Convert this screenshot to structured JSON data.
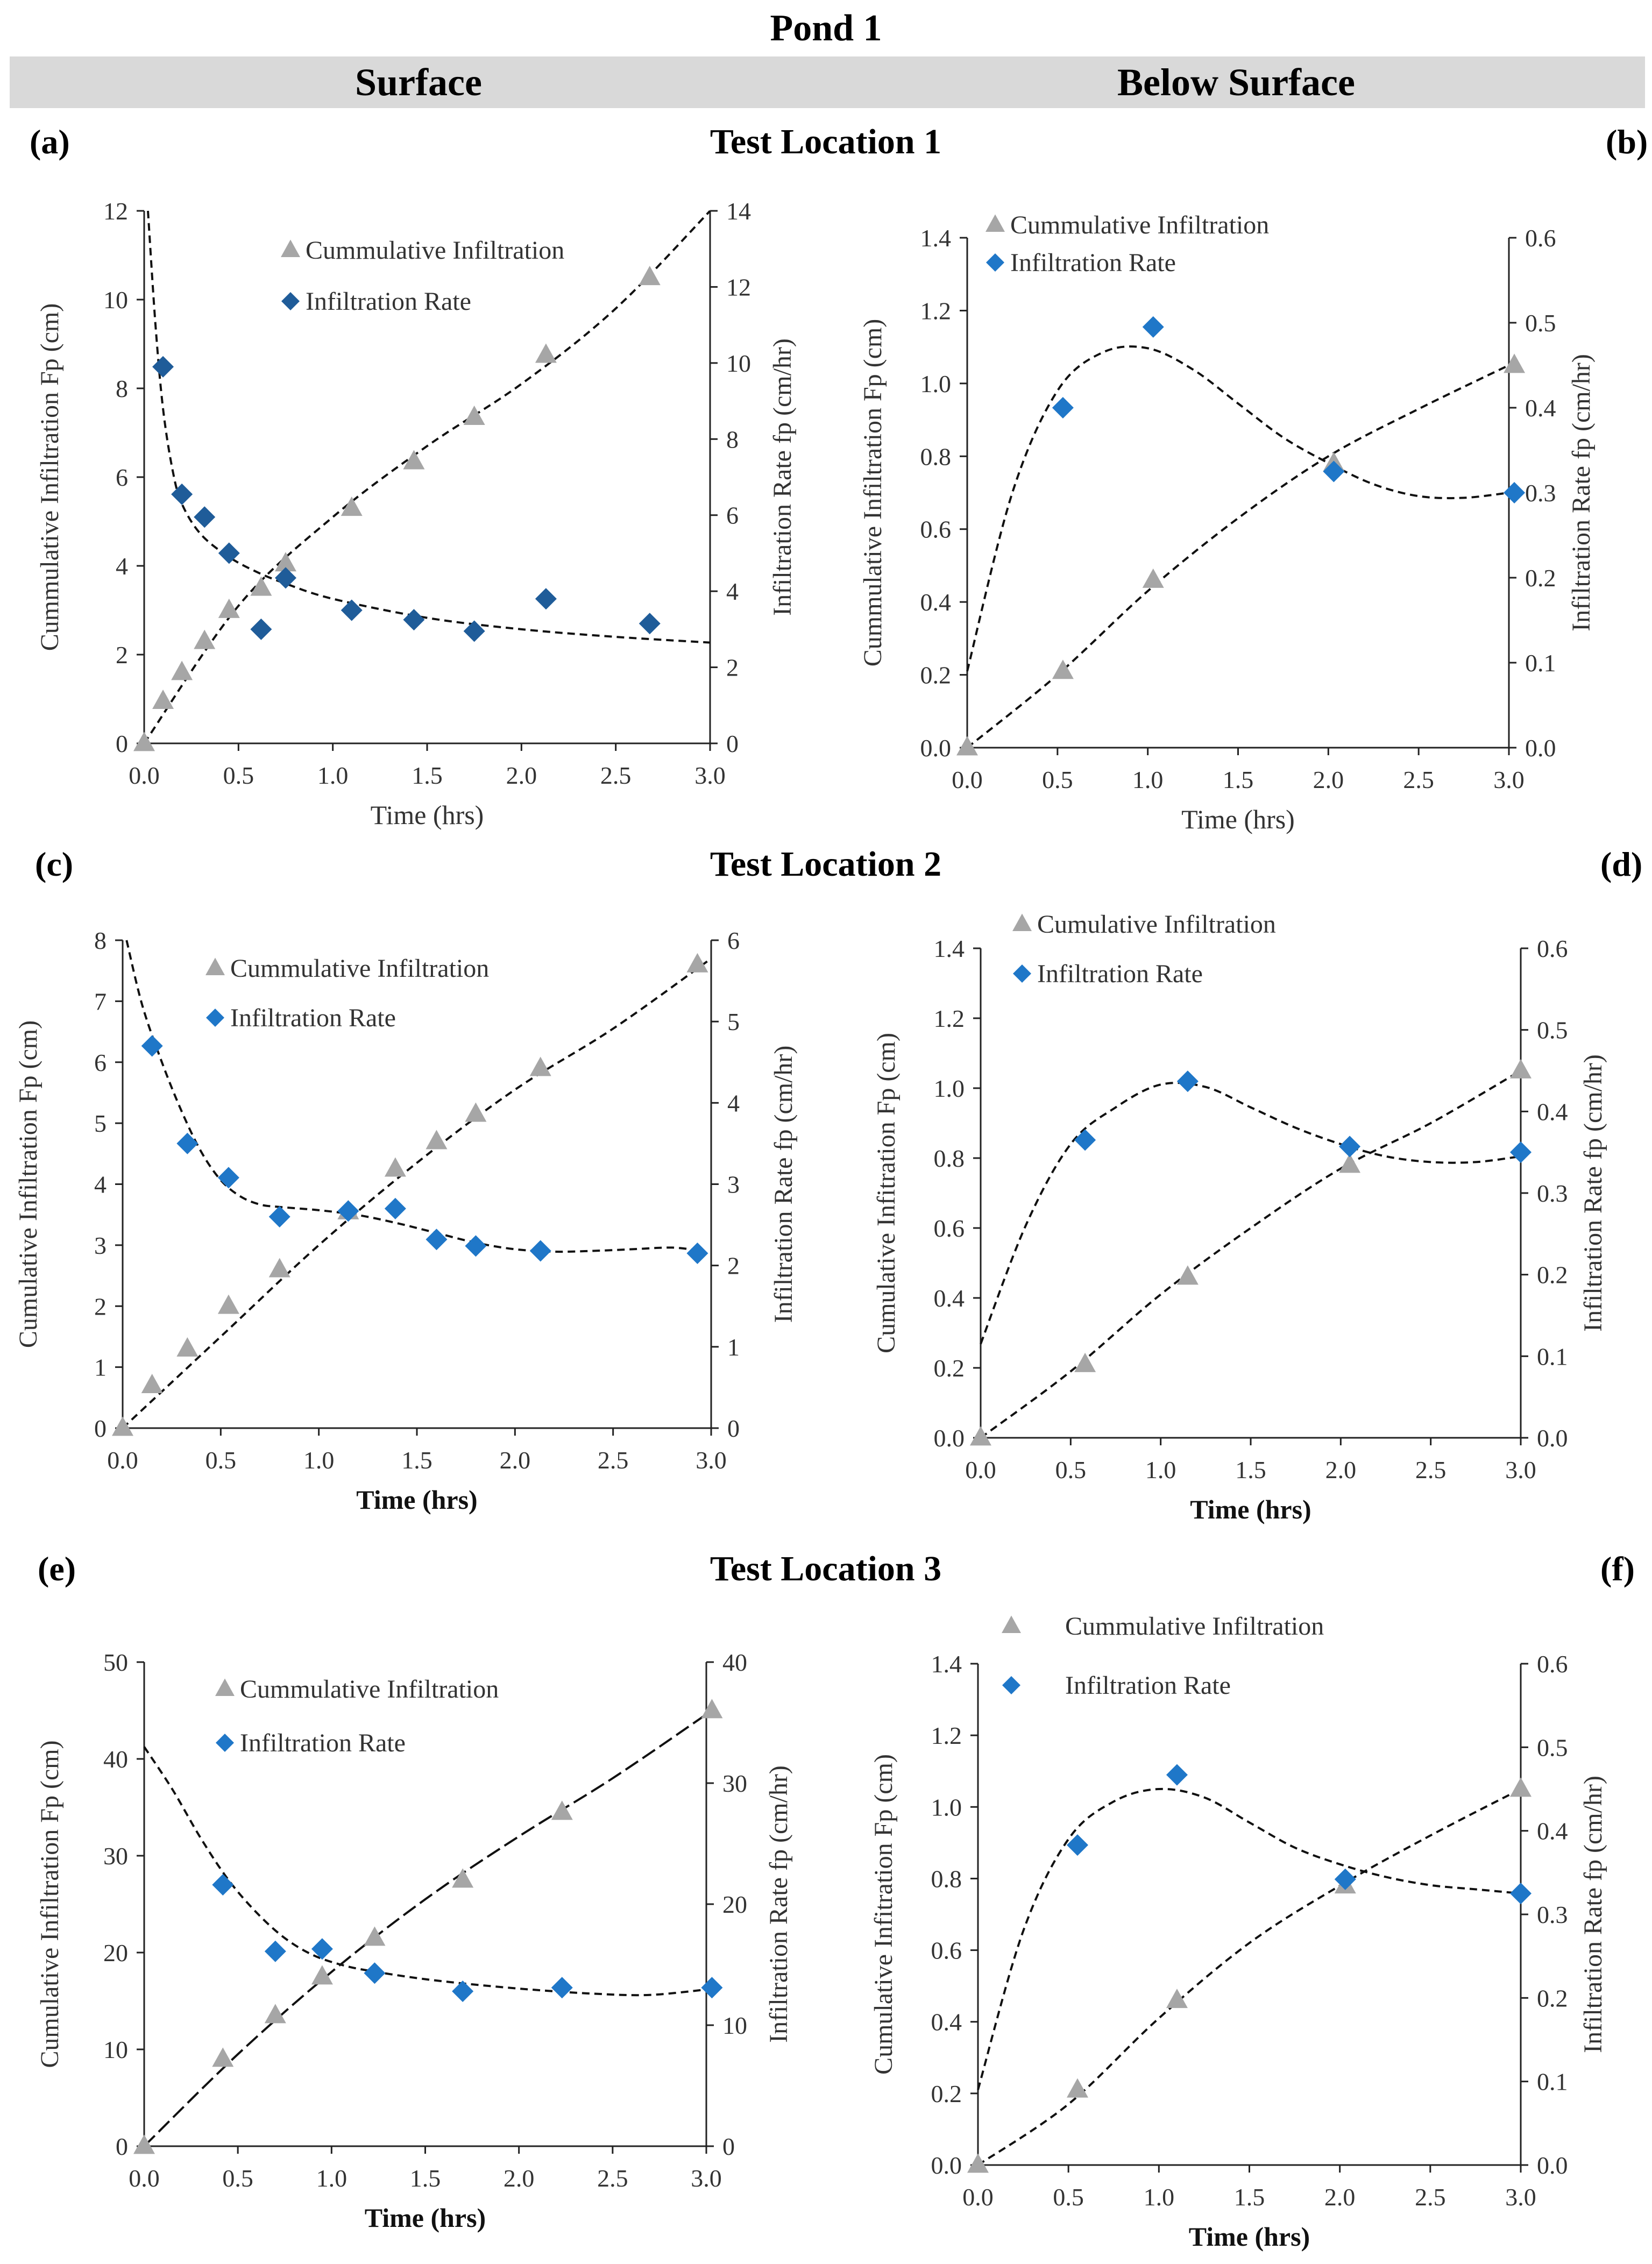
{
  "title": "Pond 1",
  "columns": [
    "Surface",
    "Below Surface"
  ],
  "rows": [
    "Test Location 1",
    "Test Location 2",
    "Test Location 3"
  ],
  "colors": {
    "triangle": "#a6a6a6",
    "diamond_dark": "#1f5c99",
    "diamond_blue": "#1f77c8",
    "band": "#d9d9d9"
  },
  "chart_data": [
    {
      "id": "a",
      "panel_label": "(a)",
      "type": "scatter",
      "xlabel": "Time (hrs)",
      "ylabel_left": "Cummulative Infiltration Fp (cm)",
      "ylabel_right": "Infiltration Rate fp (cm/hr)",
      "xlim": [
        0,
        3
      ],
      "x_ticks": [
        "0.0",
        "0.5",
        "1.0",
        "1.5",
        "2.0",
        "2.5",
        "3.0"
      ],
      "ylim_left": [
        0,
        12
      ],
      "y_ticks_left": [
        "0",
        "2",
        "4",
        "6",
        "8",
        "10",
        "12"
      ],
      "ylim_right": [
        0,
        14
      ],
      "y_ticks_right": [
        "0",
        "2",
        "4",
        "6",
        "8",
        "10",
        "12",
        "14"
      ],
      "legend": [
        "Cummulative Infiltration",
        "Infiltration Rate"
      ],
      "series": [
        {
          "name": "Cummulative Infiltration",
          "marker": "triangle",
          "x": [
            0,
            0.1,
            0.2,
            0.32,
            0.45,
            0.62,
            0.75,
            1.1,
            1.43,
            1.75,
            2.13,
            2.68
          ],
          "y": [
            0,
            0.95,
            1.6,
            2.3,
            3.0,
            3.5,
            4.05,
            5.3,
            6.35,
            7.35,
            8.75,
            10.5
          ]
        },
        {
          "name": "Infiltration Rate",
          "marker": "diamond",
          "x": [
            0.1,
            0.2,
            0.32,
            0.45,
            0.62,
            0.75,
            1.1,
            1.43,
            1.75,
            2.13,
            2.68
          ],
          "y": [
            9.9,
            6.55,
            5.95,
            5.0,
            3.0,
            4.35,
            3.5,
            3.25,
            2.95,
            3.8,
            3.15
          ]
        }
      ],
      "trend_left": {
        "x": [
          0,
          0.5,
          1,
          1.5,
          2,
          2.5,
          3
        ],
        "y": [
          0,
          3.1,
          5.1,
          6.7,
          8.1,
          9.8,
          12
        ]
      },
      "trend_right": {
        "x": [
          0.02,
          0.06,
          0.1,
          0.15,
          0.2,
          0.3,
          0.45,
          0.6,
          0.75,
          1.0,
          1.5,
          2.0,
          2.5,
          3.0
        ],
        "y": [
          14,
          11,
          8.8,
          7.2,
          6.3,
          5.5,
          4.9,
          4.5,
          4.2,
          3.8,
          3.3,
          3.0,
          2.8,
          2.65
        ]
      }
    },
    {
      "id": "b",
      "panel_label": "(b)",
      "type": "scatter",
      "xlabel": "Time (hrs)",
      "ylabel_left": "Cummulative Infiltration Fp (cm)",
      "ylabel_right": "Infiltration Rate fp (cm/hr)",
      "xlim": [
        0,
        3
      ],
      "x_ticks": [
        "0.0",
        "0.5",
        "1.0",
        "1.5",
        "2.0",
        "2.5",
        "3.0"
      ],
      "ylim_left": [
        0,
        1.4
      ],
      "y_ticks_left": [
        "0.0",
        "0.2",
        "0.4",
        "0.6",
        "0.8",
        "1.0",
        "1.2",
        "1.4"
      ],
      "ylim_right": [
        0,
        0.6
      ],
      "y_ticks_right": [
        "0.0",
        "0.1",
        "0.2",
        "0.3",
        "0.4",
        "0.5",
        "0.6"
      ],
      "legend": [
        "Cummulative Infiltration",
        "Infiltration Rate"
      ],
      "series": [
        {
          "name": "Cummulative Infiltration",
          "marker": "triangle",
          "x": [
            0,
            0.53,
            1.03,
            2.03,
            3.03
          ],
          "y": [
            0,
            0.21,
            0.46,
            0.78,
            1.05
          ]
        },
        {
          "name": "Infiltration Rate",
          "marker": "diamond",
          "x": [
            0.53,
            1.03,
            2.03,
            3.03
          ],
          "y": [
            0.4,
            0.495,
            0.325,
            0.3
          ]
        }
      ],
      "trend_left": {
        "x": [
          0,
          0.5,
          1,
          1.5,
          2,
          2.5,
          3
        ],
        "y": [
          0,
          0.2,
          0.43,
          0.63,
          0.8,
          0.93,
          1.05
        ]
      },
      "trend_right": {
        "x": [
          0,
          0.25,
          0.5,
          0.75,
          1.0,
          1.25,
          1.5,
          1.75,
          2.0,
          2.25,
          2.5,
          2.75,
          3.0
        ],
        "y": [
          0.09,
          0.3,
          0.42,
          0.465,
          0.47,
          0.445,
          0.405,
          0.365,
          0.335,
          0.31,
          0.296,
          0.294,
          0.3
        ]
      }
    },
    {
      "id": "c",
      "panel_label": "(c)",
      "type": "scatter",
      "xlabel": "Time (hrs)",
      "ylabel_left": "Cumulative Infiltration Fp (cm)",
      "ylabel_right": "Infiltration Rate fp (cm/hr)",
      "xlim": [
        0,
        3
      ],
      "x_ticks": [
        "0.0",
        "0.5",
        "1.0",
        "1.5",
        "2.0",
        "2.5",
        "3.0"
      ],
      "ylim_left": [
        0,
        8
      ],
      "y_ticks_left": [
        "0",
        "1",
        "2",
        "3",
        "4",
        "5",
        "6",
        "7",
        "8"
      ],
      "ylim_right": [
        0,
        6
      ],
      "y_ticks_right": [
        "0",
        "1",
        "2",
        "3",
        "4",
        "5",
        "6"
      ],
      "legend": [
        "Cummulative Infiltration",
        "Infiltration Rate"
      ],
      "series": [
        {
          "name": "Cummulative Infiltration",
          "marker": "triangle",
          "x": [
            0,
            0.15,
            0.33,
            0.54,
            0.8,
            1.15,
            1.39,
            1.6,
            1.8,
            2.13,
            2.93
          ],
          "y": [
            0,
            0.7,
            1.3,
            2.0,
            2.6,
            3.55,
            4.25,
            4.7,
            5.15,
            5.9,
            7.6
          ]
        },
        {
          "name": "Infiltration Rate",
          "marker": "diamond",
          "x": [
            0.15,
            0.33,
            0.54,
            0.8,
            1.15,
            1.39,
            1.6,
            1.8,
            2.13,
            2.93
          ],
          "y": [
            4.7,
            3.5,
            3.08,
            2.6,
            2.67,
            2.7,
            2.32,
            2.24,
            2.18,
            2.15
          ]
        }
      ],
      "trend_left": {
        "x": [
          0,
          0.5,
          1,
          1.5,
          2,
          2.5,
          3
        ],
        "y": [
          0,
          1.5,
          3.0,
          4.35,
          5.55,
          6.55,
          7.7
        ]
      },
      "trend_right": {
        "x": [
          0.02,
          0.1,
          0.2,
          0.3,
          0.4,
          0.5,
          0.6,
          0.7,
          0.8,
          1.0,
          1.2,
          1.4,
          1.6,
          1.8,
          2.0,
          2.2,
          2.4,
          2.6,
          2.8,
          2.95
        ],
        "y": [
          6.0,
          5.2,
          4.5,
          3.9,
          3.4,
          3.05,
          2.85,
          2.75,
          2.72,
          2.68,
          2.62,
          2.52,
          2.4,
          2.28,
          2.2,
          2.17,
          2.18,
          2.2,
          2.22,
          2.18
        ]
      }
    },
    {
      "id": "d",
      "panel_label": "(d)",
      "type": "scatter",
      "xlabel": "Time (hrs)",
      "ylabel_left": "Cumulative Infitration Fp (cm)",
      "ylabel_right": "Infiltration Rate fp (cm/hr)",
      "xlim": [
        0,
        3
      ],
      "x_ticks": [
        "0.0",
        "0.5",
        "1.0",
        "1.5",
        "2.0",
        "2.5",
        "3.0"
      ],
      "ylim_left": [
        0,
        1.4
      ],
      "y_ticks_left": [
        "0.0",
        "0.2",
        "0.4",
        "0.6",
        "0.8",
        "1.0",
        "1.2",
        "1.4"
      ],
      "ylim_right": [
        0,
        0.6
      ],
      "y_ticks_right": [
        "0.0",
        "0.1",
        "0.2",
        "0.3",
        "0.4",
        "0.5",
        "0.6"
      ],
      "legend": [
        "Cumulative Infiltration",
        "Infiltration Rate"
      ],
      "series": [
        {
          "name": "Cumulative Infiltration",
          "marker": "triangle",
          "x": [
            0,
            0.58,
            1.15,
            2.05,
            3.0
          ],
          "y": [
            0,
            0.21,
            0.46,
            0.78,
            1.05
          ]
        },
        {
          "name": "Infiltration Rate",
          "marker": "diamond",
          "x": [
            0.58,
            1.15,
            2.05,
            3.0
          ],
          "y": [
            0.365,
            0.437,
            0.357,
            0.35
          ]
        }
      ],
      "trend_left": {
        "x": [
          0,
          0.5,
          1,
          1.5,
          2,
          2.5,
          3
        ],
        "y": [
          0,
          0.19,
          0.41,
          0.6,
          0.77,
          0.9,
          1.05
        ]
      },
      "trend_right": {
        "x": [
          0,
          0.25,
          0.5,
          0.75,
          1.0,
          1.25,
          1.5,
          1.75,
          2.0,
          2.25,
          2.5,
          2.75,
          3.0
        ],
        "y": [
          0.115,
          0.26,
          0.36,
          0.405,
          0.433,
          0.43,
          0.405,
          0.38,
          0.36,
          0.345,
          0.338,
          0.338,
          0.345
        ]
      }
    },
    {
      "id": "e",
      "panel_label": "(e)",
      "type": "scatter",
      "xlabel": "Time (hrs)",
      "ylabel_left": "Cumulative Infiltration Fp (cm)",
      "ylabel_right": "Infiltration Rate fp (cm/hr)",
      "xlim": [
        0,
        3
      ],
      "x_ticks": [
        "0.0",
        "0.5",
        "1.0",
        "1.5",
        "2.0",
        "2.5",
        "3.0"
      ],
      "ylim_left": [
        0,
        50
      ],
      "y_ticks_left": [
        "0",
        "10",
        "20",
        "30",
        "40",
        "50"
      ],
      "ylim_right": [
        0,
        40
      ],
      "y_ticks_right": [
        "0",
        "10",
        "20",
        "30",
        "40"
      ],
      "legend": [
        "Cummulative Infiltration",
        "Infiltration Rate"
      ],
      "series": [
        {
          "name": "Cummulative Infiltration",
          "marker": "triangle",
          "x": [
            0,
            0.42,
            0.7,
            0.95,
            1.23,
            1.7,
            2.23,
            3.03
          ],
          "y": [
            0,
            9,
            13.5,
            17.5,
            21.5,
            27.5,
            34.5,
            45
          ]
        },
        {
          "name": "Infiltration Rate",
          "marker": "diamond",
          "x": [
            0.42,
            0.7,
            0.95,
            1.23,
            1.7,
            2.23,
            3.03
          ],
          "y": [
            21.6,
            16.1,
            16.3,
            14.3,
            12.8,
            13.1,
            13.1
          ]
        }
      ],
      "trend_left": {
        "x": [
          0,
          0.5,
          1,
          1.5,
          2,
          2.5,
          3.03
        ],
        "y": [
          0,
          9.5,
          18,
          25.5,
          32,
          38,
          45
        ]
      },
      "trend_right": {
        "x": [
          0,
          0.15,
          0.3,
          0.45,
          0.6,
          0.75,
          0.9,
          1.05,
          1.2,
          1.5,
          1.8,
          2.1,
          2.4,
          2.7,
          3.03
        ],
        "y": [
          33,
          29.5,
          25.5,
          22,
          19.3,
          17.2,
          15.8,
          15.0,
          14.5,
          13.8,
          13.3,
          12.9,
          12.6,
          12.5,
          13.0
        ]
      }
    },
    {
      "id": "f",
      "panel_label": "(f)",
      "type": "scatter",
      "xlabel": "Time (hrs)",
      "ylabel_left": "Cumulative Infitration Fp (cm)",
      "ylabel_right": "Infiltration Rate fp (cm/hr)",
      "xlim": [
        0,
        3
      ],
      "x_ticks": [
        "0.0",
        "0.5",
        "1.0",
        "1.5",
        "2.0",
        "2.5",
        "3.0"
      ],
      "ylim_left": [
        0,
        1.4
      ],
      "y_ticks_left": [
        "0.0",
        "0.2",
        "0.4",
        "0.6",
        "0.8",
        "1.0",
        "1.2",
        "1.4"
      ],
      "ylim_right": [
        0,
        0.6
      ],
      "y_ticks_right": [
        "0.0",
        "0.1",
        "0.2",
        "0.3",
        "0.4",
        "0.5",
        "0.6"
      ],
      "legend": [
        "Cummulative Infiltration",
        "Infiltration Rate"
      ],
      "series": [
        {
          "name": "Cummulative Infiltration",
          "marker": "triangle",
          "x": [
            0,
            0.55,
            1.1,
            2.03,
            3.0
          ],
          "y": [
            0,
            0.21,
            0.46,
            0.78,
            1.05
          ]
        },
        {
          "name": "Infiltration Rate",
          "marker": "diamond",
          "x": [
            0.55,
            1.1,
            2.03,
            3.0
          ],
          "y": [
            0.383,
            0.467,
            0.342,
            0.325
          ]
        }
      ],
      "trend_left": {
        "x": [
          0,
          0.5,
          1,
          1.5,
          2,
          2.5,
          3
        ],
        "y": [
          0,
          0.17,
          0.41,
          0.62,
          0.78,
          0.92,
          1.05
        ]
      },
      "trend_right": {
        "x": [
          0,
          0.25,
          0.5,
          0.75,
          1.0,
          1.25,
          1.5,
          1.75,
          2.0,
          2.25,
          2.5,
          2.75,
          3.0
        ],
        "y": [
          0.09,
          0.28,
          0.39,
          0.435,
          0.45,
          0.44,
          0.41,
          0.38,
          0.36,
          0.345,
          0.335,
          0.33,
          0.325
        ]
      }
    }
  ]
}
